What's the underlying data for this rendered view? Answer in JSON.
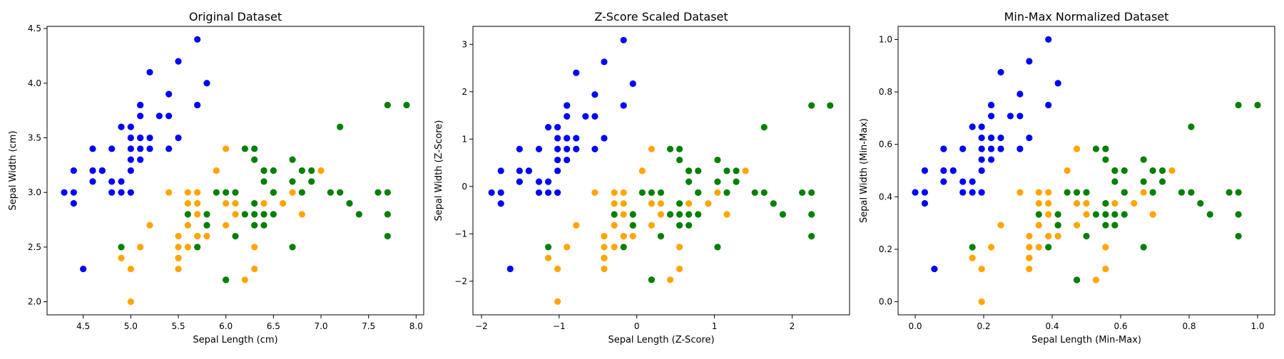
{
  "chart_data": [
    {
      "type": "scatter",
      "title": "Original Dataset",
      "xlabel": "Sepal Length (cm)",
      "ylabel": "Sepal Width (cm)",
      "xlim": [
        4.12,
        8.08
      ],
      "ylim": [
        1.88,
        4.52
      ],
      "xticks": [
        4.5,
        5.0,
        5.5,
        6.0,
        6.5,
        7.0,
        7.5,
        8.0
      ],
      "xtick_labels": [
        "4.5",
        "5.0",
        "5.5",
        "6.0",
        "6.5",
        "7.0",
        "7.5",
        "8.0"
      ],
      "yticks": [
        2.0,
        2.5,
        3.0,
        3.5,
        4.0,
        4.5
      ],
      "ytick_labels": [
        "2.0",
        "2.5",
        "3.0",
        "3.5",
        "4.0",
        "4.5"
      ],
      "grid": false,
      "series": [
        {
          "color": "#0000ff",
          "x": [
            4.3,
            4.4,
            4.4,
            4.4,
            4.5,
            4.6,
            4.6,
            4.6,
            4.7,
            4.7,
            4.8,
            4.8,
            4.8,
            4.9,
            4.9,
            4.9,
            5.0,
            5.0,
            5.0,
            5.0,
            5.0,
            5.0,
            5.1,
            5.1,
            5.1,
            5.1,
            5.1,
            5.1,
            5.1,
            5.2,
            5.2,
            5.2,
            5.3,
            5.4,
            5.4,
            5.4,
            5.5,
            5.5,
            5.7,
            5.7,
            5.8
          ],
          "y": [
            3.0,
            2.9,
            3.0,
            3.2,
            2.3,
            3.1,
            3.2,
            3.4,
            3.2,
            3.2,
            3.0,
            3.1,
            3.4,
            3.0,
            3.1,
            3.6,
            3.0,
            3.2,
            3.3,
            3.4,
            3.5,
            3.6,
            3.3,
            3.4,
            3.5,
            3.7,
            3.8,
            3.5,
            3.8,
            3.4,
            3.5,
            4.1,
            3.7,
            3.4,
            3.7,
            3.9,
            3.5,
            4.2,
            3.8,
            4.4,
            4.0
          ]
        },
        {
          "color": "#ffa500",
          "x": [
            4.9,
            5.0,
            5.0,
            5.1,
            5.2,
            5.4,
            5.5,
            5.5,
            5.5,
            5.5,
            5.5,
            5.6,
            5.6,
            5.6,
            5.6,
            5.7,
            5.7,
            5.7,
            5.7,
            5.7,
            5.8,
            5.8,
            5.9,
            6.0,
            6.0,
            6.0,
            6.1,
            6.1,
            6.2,
            6.3,
            6.3,
            6.4,
            6.6,
            6.7,
            6.8,
            7.0
          ],
          "y": [
            2.4,
            2.0,
            2.3,
            2.5,
            2.7,
            3.0,
            2.3,
            2.4,
            2.5,
            2.6,
            2.4,
            2.5,
            2.7,
            2.9,
            3.0,
            2.6,
            2.8,
            2.9,
            3.0,
            2.6,
            2.6,
            2.7,
            3.2,
            2.7,
            2.9,
            3.4,
            2.8,
            2.9,
            2.2,
            2.3,
            2.5,
            2.9,
            2.9,
            3.0,
            2.8,
            3.2
          ]
        },
        {
          "color": "#008000",
          "x": [
            4.9,
            5.6,
            5.7,
            5.8,
            5.8,
            5.9,
            6.0,
            6.0,
            6.0,
            6.1,
            6.1,
            6.2,
            6.3,
            6.3,
            6.3,
            6.3,
            6.4,
            6.4,
            6.4,
            6.4,
            6.5,
            6.5,
            6.5,
            6.7,
            6.7,
            6.7,
            6.8,
            6.8,
            6.9,
            6.9,
            7.1,
            7.2,
            7.2,
            7.3,
            7.4,
            7.6,
            7.7,
            7.7,
            7.7,
            7.7,
            7.9,
            6.2,
            6.3,
            6.4,
            6.5
          ],
          "y": [
            2.5,
            2.8,
            2.5,
            2.7,
            2.8,
            3.0,
            2.2,
            3.0,
            2.2,
            2.6,
            3.0,
            3.4,
            2.7,
            2.8,
            2.9,
            3.3,
            2.7,
            2.8,
            3.1,
            3.2,
            3.0,
            3.2,
            2.8,
            3.3,
            3.1,
            2.5,
            3.0,
            3.2,
            3.1,
            3.2,
            3.0,
            3.0,
            3.6,
            2.9,
            2.8,
            3.0,
            2.6,
            2.8,
            3.0,
            3.8,
            3.8,
            2.8,
            3.4,
            3.2,
            3.0
          ]
        }
      ]
    },
    {
      "type": "scatter",
      "title": "Z-Score Scaled Dataset",
      "xlabel": "Sepal Length (Z-Score)",
      "ylabel": "Sepal Width (Z-Score)",
      "xlim": [
        -2.11,
        2.74
      ],
      "ylim": [
        -2.71,
        3.38
      ],
      "xticks": [
        -2,
        -1,
        0,
        1,
        2
      ],
      "xtick_labels": [
        "−2",
        "−1",
        "0",
        "1",
        "2"
      ],
      "yticks": [
        -2,
        -1,
        0,
        1,
        2,
        3
      ],
      "ytick_labels": [
        "−2",
        "−1",
        "0",
        "1",
        "2",
        "3"
      ],
      "grid": false,
      "series": [
        {
          "color": "#0000ff",
          "x": [
            -1.87,
            -1.75,
            -1.75,
            -1.75,
            -1.63,
            -1.51,
            -1.51,
            -1.51,
            -1.39,
            -1.39,
            -1.26,
            -1.26,
            -1.26,
            -1.14,
            -1.14,
            -1.14,
            -1.02,
            -1.02,
            -1.02,
            -1.02,
            -1.02,
            -1.02,
            -0.9,
            -0.9,
            -0.9,
            -0.9,
            -0.9,
            -0.9,
            -0.9,
            -0.78,
            -0.78,
            -0.78,
            -0.66,
            -0.54,
            -0.54,
            -0.54,
            -0.42,
            -0.42,
            -0.17,
            -0.17,
            -0.05
          ],
          "y": [
            -0.13,
            -0.36,
            -0.13,
            0.33,
            -1.74,
            0.1,
            0.33,
            0.79,
            0.33,
            0.33,
            -0.13,
            0.1,
            0.79,
            -0.13,
            0.1,
            1.25,
            -0.13,
            0.33,
            0.56,
            0.79,
            1.02,
            1.25,
            0.56,
            0.79,
            1.02,
            1.48,
            1.71,
            1.02,
            1.71,
            0.79,
            1.02,
            2.4,
            1.48,
            0.79,
            1.48,
            1.94,
            1.02,
            2.63,
            1.71,
            3.09,
            2.17
          ]
        },
        {
          "color": "#ffa500",
          "x": [
            -1.14,
            -1.02,
            -1.02,
            -0.9,
            -0.78,
            -0.54,
            -0.42,
            -0.42,
            -0.42,
            -0.42,
            -0.42,
            -0.29,
            -0.29,
            -0.29,
            -0.29,
            -0.17,
            -0.17,
            -0.17,
            -0.17,
            -0.17,
            -0.05,
            -0.05,
            0.07,
            0.19,
            0.19,
            0.19,
            0.31,
            0.31,
            0.43,
            0.55,
            0.55,
            0.67,
            0.92,
            1.04,
            1.16,
            1.4
          ],
          "y": [
            -1.51,
            -2.43,
            -1.74,
            -1.28,
            -0.82,
            -0.13,
            -1.74,
            -1.51,
            -1.28,
            -1.05,
            -1.51,
            -1.28,
            -0.82,
            -0.36,
            -0.13,
            -1.05,
            -0.59,
            -0.36,
            -0.13,
            -1.05,
            -1.05,
            -0.82,
            0.33,
            -0.82,
            -0.36,
            0.79,
            -0.59,
            -0.36,
            -1.97,
            -1.74,
            -1.28,
            -0.36,
            -0.36,
            -0.13,
            -0.59,
            0.33
          ]
        },
        {
          "color": "#008000",
          "x": [
            -1.14,
            -0.29,
            -0.17,
            -0.05,
            -0.05,
            0.07,
            0.19,
            0.19,
            0.19,
            0.31,
            0.31,
            0.43,
            0.55,
            0.55,
            0.55,
            0.55,
            0.67,
            0.67,
            0.67,
            0.67,
            0.79,
            0.79,
            0.79,
            1.04,
            1.04,
            1.04,
            1.16,
            1.16,
            1.28,
            1.28,
            1.52,
            1.64,
            1.64,
            1.76,
            1.88,
            2.13,
            2.25,
            2.25,
            2.25,
            2.25,
            2.49,
            0.43,
            0.55,
            0.67,
            0.79
          ],
          "y": [
            -1.28,
            -0.59,
            -1.28,
            -0.82,
            -0.59,
            -0.13,
            -1.97,
            -0.13,
            -1.97,
            -1.05,
            -0.13,
            0.79,
            -0.82,
            -0.59,
            -0.36,
            0.56,
            -0.82,
            -0.59,
            0.1,
            0.33,
            -0.13,
            0.33,
            -0.59,
            0.56,
            0.1,
            -1.28,
            -0.13,
            0.33,
            0.1,
            0.33,
            -0.13,
            -0.13,
            1.25,
            -0.36,
            -0.59,
            -0.13,
            -1.05,
            -0.59,
            -0.13,
            1.71,
            1.71,
            -0.59,
            0.79,
            0.33,
            -0.13
          ]
        }
      ]
    },
    {
      "type": "scatter",
      "title": "Min-Max Normalized Dataset",
      "xlabel": "Sepal Length (Min-Max)",
      "ylabel": "Sepal Width (Min-Max)",
      "xlim": [
        -0.05,
        1.05
      ],
      "ylim": [
        -0.05,
        1.05
      ],
      "xticks": [
        0.0,
        0.2,
        0.4,
        0.6,
        0.8,
        1.0
      ],
      "xtick_labels": [
        "0.0",
        "0.2",
        "0.4",
        "0.6",
        "0.8",
        "1.0"
      ],
      "yticks": [
        0.0,
        0.2,
        0.4,
        0.6,
        0.8,
        1.0
      ],
      "ytick_labels": [
        "0.0",
        "0.2",
        "0.4",
        "0.6",
        "0.8",
        "1.0"
      ],
      "grid": false,
      "series": [
        {
          "color": "#0000ff",
          "x": [
            0.0,
            0.028,
            0.028,
            0.028,
            0.056,
            0.083,
            0.083,
            0.083,
            0.111,
            0.111,
            0.139,
            0.139,
            0.139,
            0.167,
            0.167,
            0.167,
            0.194,
            0.194,
            0.194,
            0.194,
            0.194,
            0.194,
            0.222,
            0.222,
            0.222,
            0.222,
            0.222,
            0.222,
            0.222,
            0.25,
            0.25,
            0.25,
            0.278,
            0.306,
            0.306,
            0.306,
            0.333,
            0.333,
            0.389,
            0.389,
            0.417
          ],
          "y": [
            0.417,
            0.375,
            0.417,
            0.5,
            0.125,
            0.458,
            0.5,
            0.583,
            0.5,
            0.5,
            0.417,
            0.458,
            0.583,
            0.417,
            0.458,
            0.667,
            0.417,
            0.5,
            0.542,
            0.583,
            0.625,
            0.667,
            0.542,
            0.583,
            0.625,
            0.708,
            0.75,
            0.625,
            0.75,
            0.583,
            0.625,
            0.875,
            0.708,
            0.583,
            0.708,
            0.792,
            0.625,
            0.917,
            0.75,
            1.0,
            0.833
          ]
        },
        {
          "color": "#ffa500",
          "x": [
            0.167,
            0.194,
            0.194,
            0.222,
            0.25,
            0.306,
            0.333,
            0.333,
            0.333,
            0.333,
            0.333,
            0.361,
            0.361,
            0.361,
            0.361,
            0.389,
            0.389,
            0.389,
            0.389,
            0.389,
            0.417,
            0.417,
            0.444,
            0.472,
            0.472,
            0.472,
            0.5,
            0.5,
            0.528,
            0.556,
            0.556,
            0.583,
            0.639,
            0.667,
            0.694,
            0.75
          ],
          "y": [
            0.167,
            0.0,
            0.125,
            0.208,
            0.292,
            0.417,
            0.125,
            0.167,
            0.208,
            0.25,
            0.167,
            0.208,
            0.292,
            0.375,
            0.417,
            0.25,
            0.333,
            0.375,
            0.417,
            0.25,
            0.25,
            0.292,
            0.5,
            0.292,
            0.375,
            0.583,
            0.333,
            0.375,
            0.083,
            0.125,
            0.208,
            0.375,
            0.375,
            0.417,
            0.333,
            0.5
          ]
        },
        {
          "color": "#008000",
          "x": [
            0.167,
            0.361,
            0.389,
            0.417,
            0.417,
            0.444,
            0.472,
            0.472,
            0.472,
            0.5,
            0.5,
            0.528,
            0.556,
            0.556,
            0.556,
            0.556,
            0.583,
            0.583,
            0.583,
            0.583,
            0.611,
            0.611,
            0.611,
            0.667,
            0.667,
            0.667,
            0.694,
            0.694,
            0.722,
            0.722,
            0.778,
            0.806,
            0.806,
            0.833,
            0.861,
            0.917,
            0.944,
            0.944,
            0.944,
            0.944,
            1.0,
            0.528,
            0.556,
            0.583,
            0.611
          ],
          "y": [
            0.208,
            0.333,
            0.208,
            0.292,
            0.333,
            0.417,
            0.083,
            0.417,
            0.083,
            0.25,
            0.417,
            0.583,
            0.292,
            0.333,
            0.375,
            0.542,
            0.292,
            0.333,
            0.458,
            0.5,
            0.417,
            0.5,
            0.333,
            0.542,
            0.458,
            0.208,
            0.417,
            0.5,
            0.458,
            0.5,
            0.417,
            0.417,
            0.667,
            0.375,
            0.333,
            0.417,
            0.25,
            0.333,
            0.417,
            0.75,
            0.75,
            0.333,
            0.583,
            0.5,
            0.417
          ]
        }
      ]
    }
  ]
}
